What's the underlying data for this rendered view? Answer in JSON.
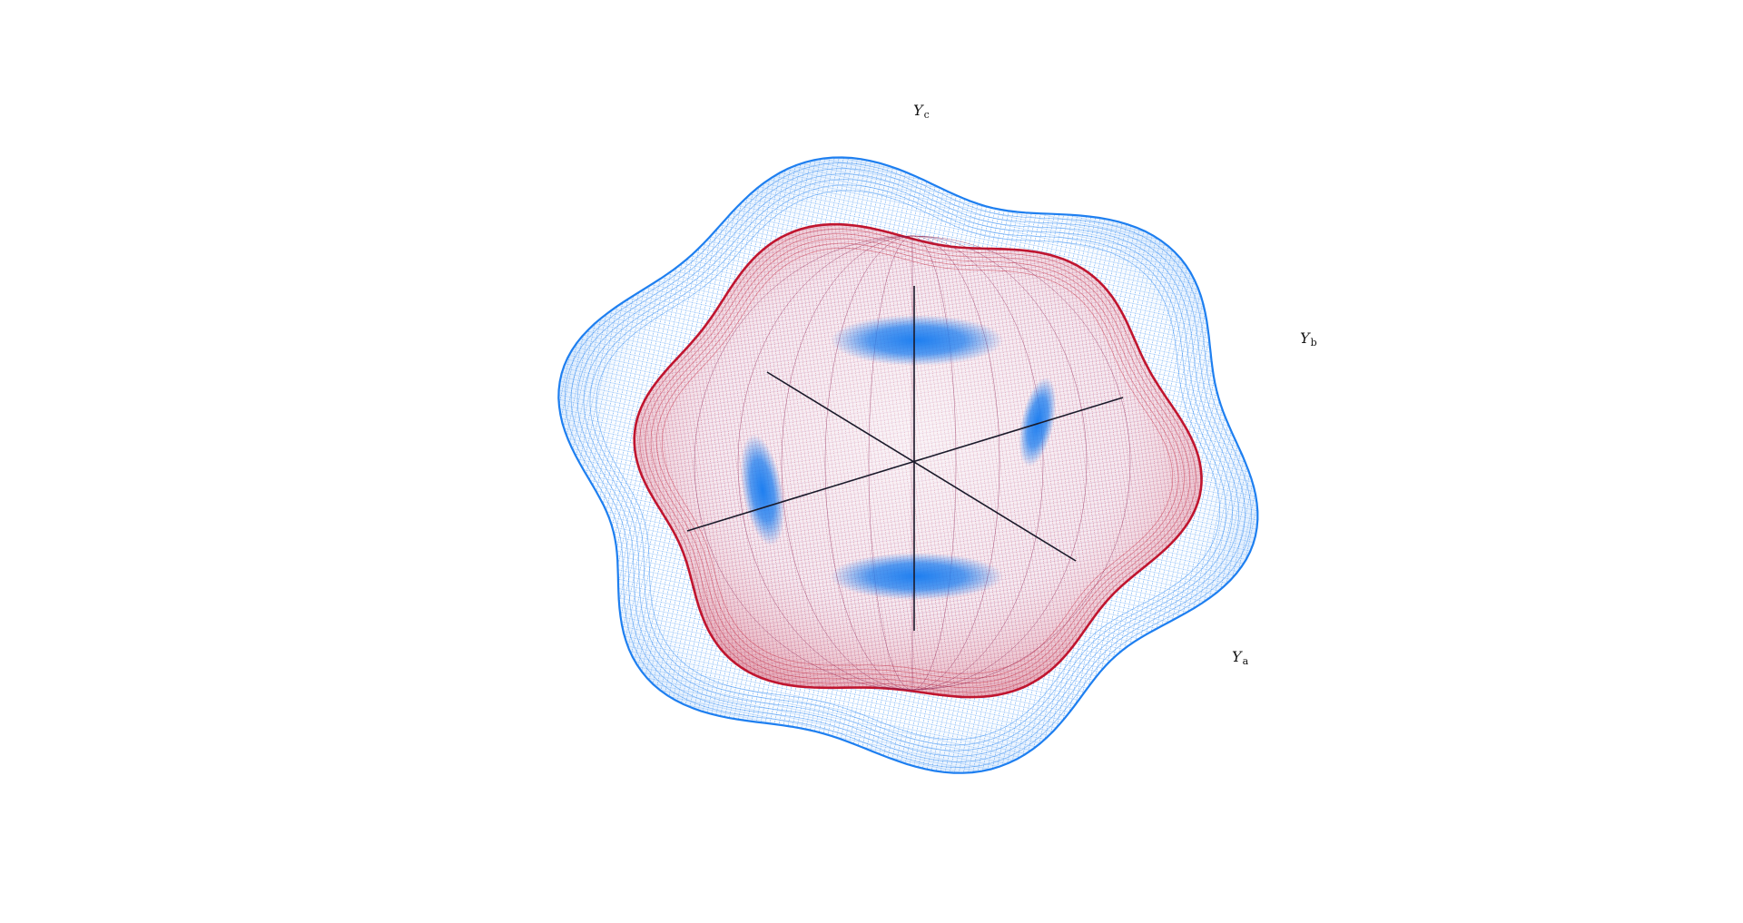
{
  "colors": {
    "outer_surface": "#1e7ff0",
    "inner_surface": "#c0152f",
    "inner_highlight": "#1e7ff0",
    "axes": "#1a1a2a",
    "background": "#ffffff"
  },
  "axes": {
    "c": {
      "symbol": "Y",
      "sub": "c"
    },
    "b": {
      "symbol": "Y",
      "sub": "b"
    },
    "a": {
      "symbol": "Y",
      "sub": "a"
    }
  }
}
